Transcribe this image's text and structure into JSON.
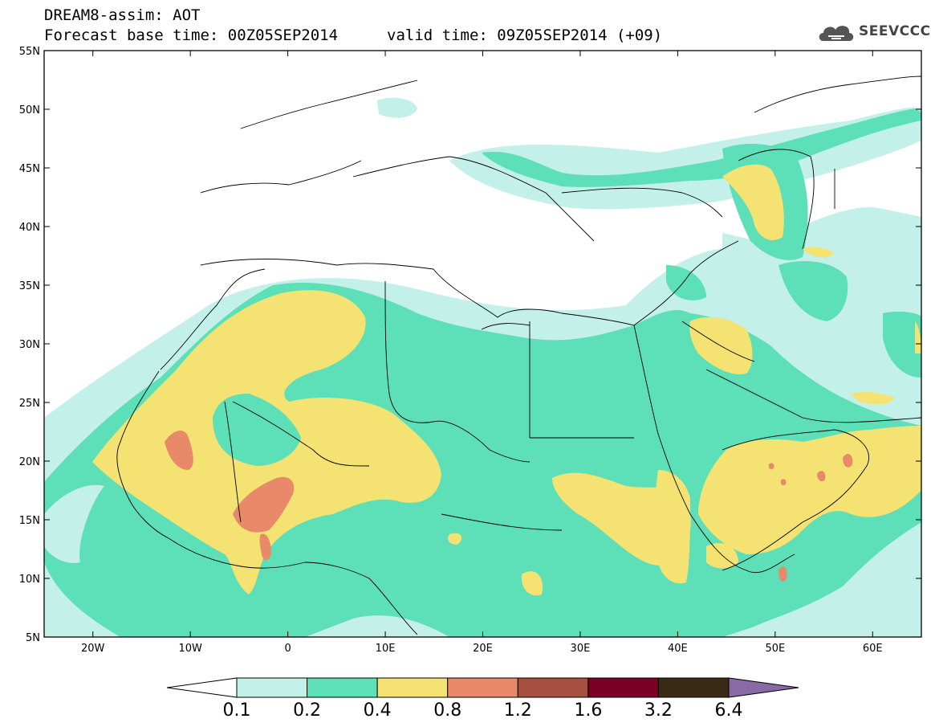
{
  "header": {
    "line1": "DREAM8-assim: AOT",
    "line2": "Forecast base time: 00Z05SEP2014",
    "valid": "valid time: 09Z05SEP2014 (+09)",
    "logo_text": "SEEVCCC",
    "logo_icon": "cloud-icon"
  },
  "map": {
    "projection": "lat-lon",
    "lon_range": [
      -25,
      65
    ],
    "lat_range": [
      5,
      55
    ],
    "lat_ticks": [
      "55N",
      "50N",
      "45N",
      "40N",
      "35N",
      "30N",
      "25N",
      "20N",
      "15N",
      "10N",
      "5N"
    ],
    "lon_ticks": [
      "20W",
      "10W",
      "0",
      "10E",
      "20E",
      "30E",
      "40E",
      "50E",
      "60E"
    ]
  },
  "colorbar": {
    "levels": [
      "0.1",
      "0.2",
      "0.4",
      "0.8",
      "1.2",
      "1.6",
      "3.2",
      "6.4"
    ],
    "colors": [
      "#c4f0ea",
      "#5ddfb8",
      "#f4e272",
      "#e8896a",
      "#a8503f",
      "#7a0026",
      "#3a2a15"
    ],
    "under_color": "#ffffff",
    "over_color": "#8a6aa6"
  }
}
